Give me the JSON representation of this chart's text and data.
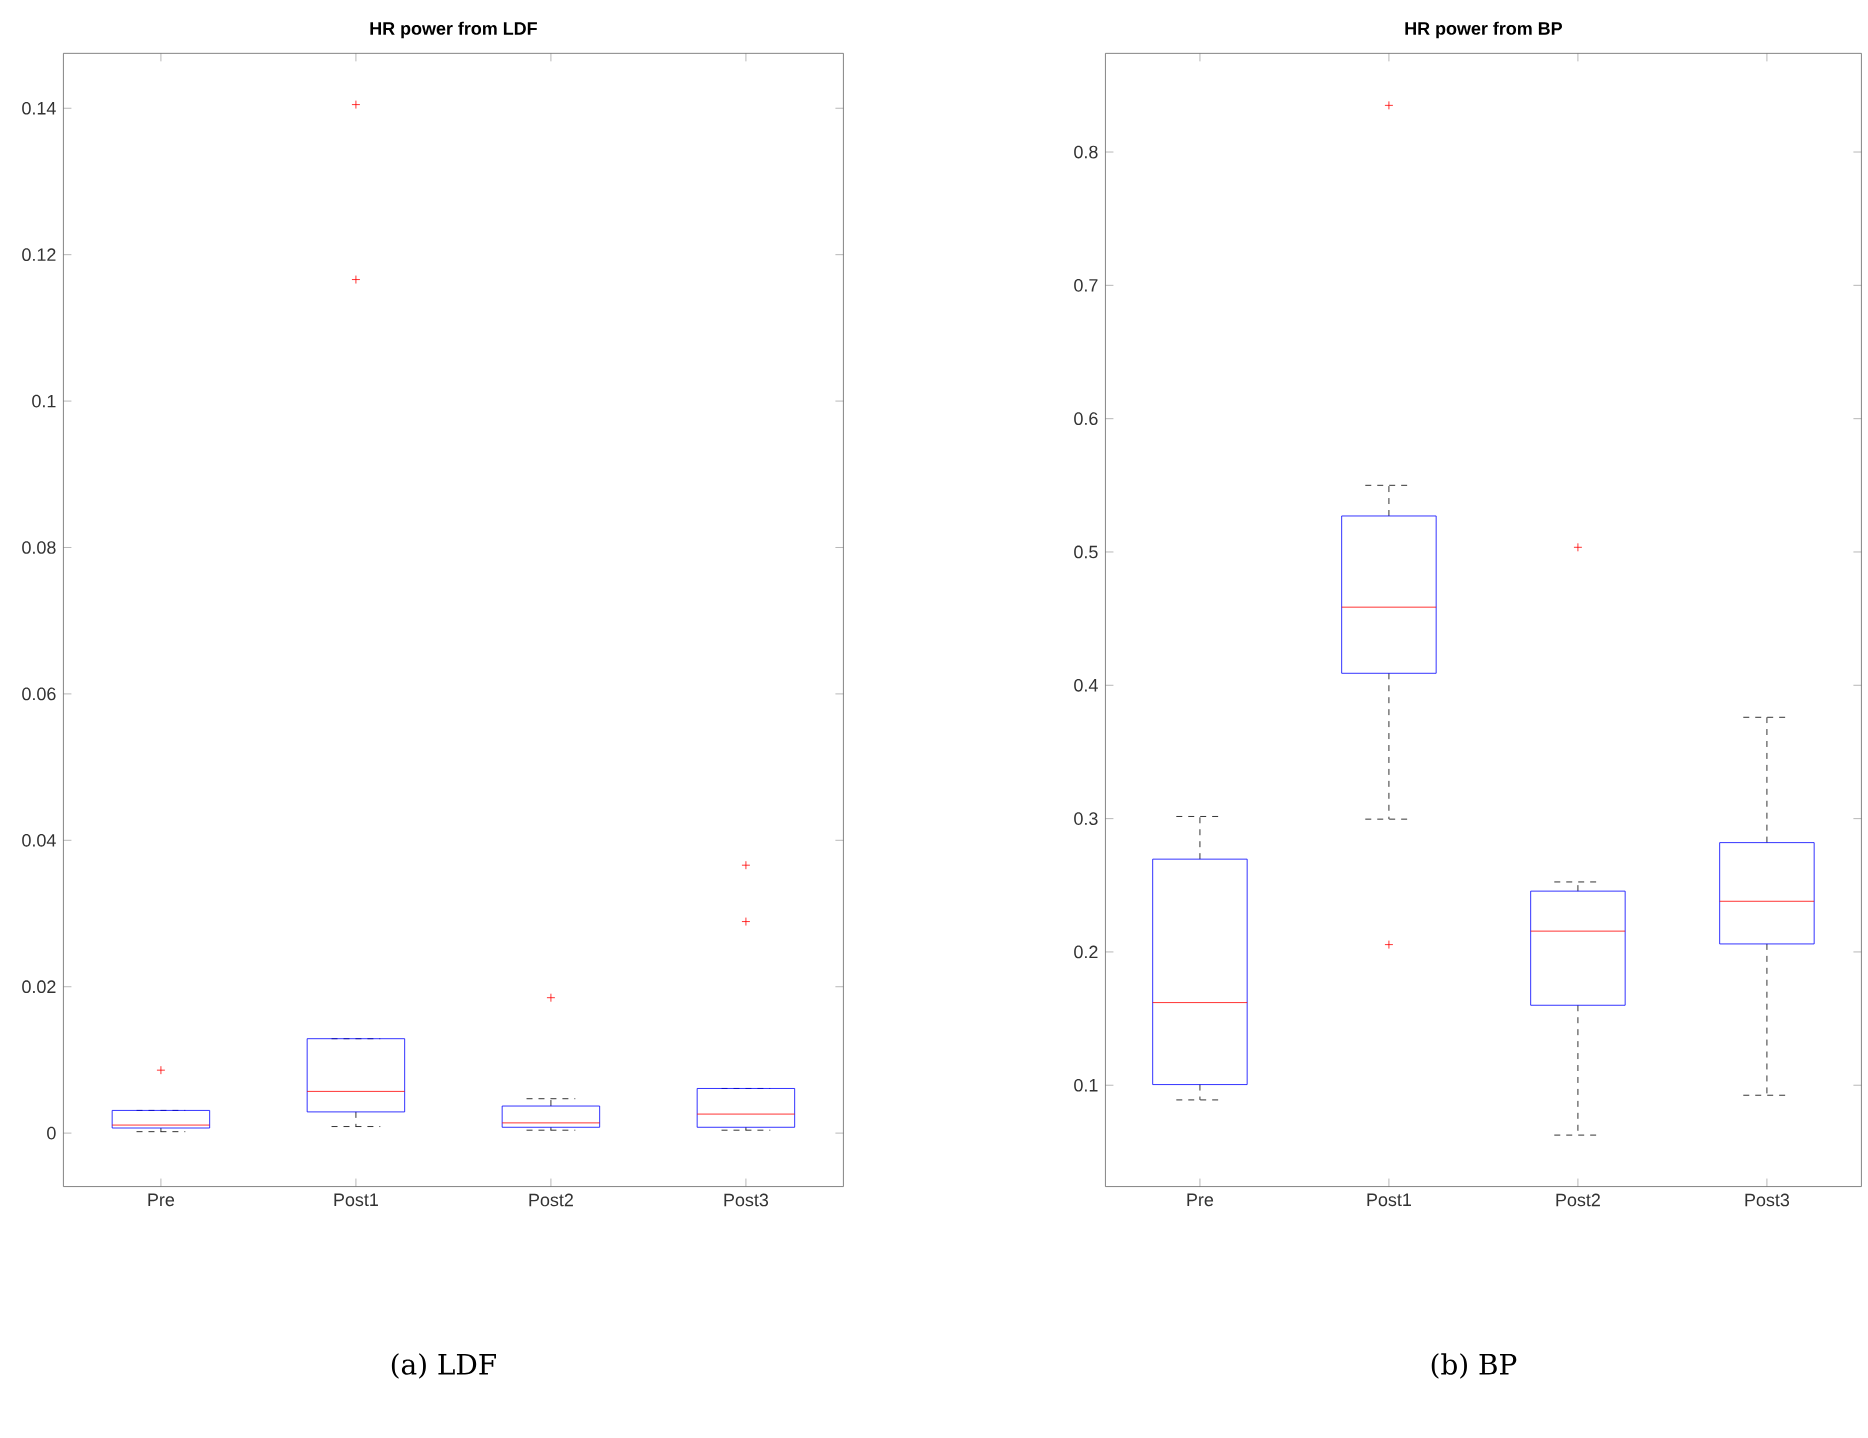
{
  "chart_data": [
    {
      "type": "box",
      "title": "HR power from LDF",
      "categories": [
        "Pre",
        "Post1",
        "Post2",
        "Post3"
      ],
      "ylim": [
        -0.0073,
        0.1475
      ],
      "yticks": [
        0,
        0.02,
        0.04,
        0.06,
        0.08,
        0.1,
        0.12,
        0.14
      ],
      "marker": "cross",
      "line_style": "dashed",
      "annotations": [
        "(a) LDF"
      ],
      "series": [
        {
          "color": "#0000ff",
          "boxes": [
            {
              "low": 0.0002,
              "q1": 0.0007,
              "median": 0.0011,
              "q3": 0.0031,
              "high": 0.0031,
              "outliers": [
                0.0086
              ]
            },
            {
              "low": 0.0009,
              "q1": 0.0029,
              "median": 0.0057,
              "q3": 0.0129,
              "high": 0.0129,
              "outliers": [
                0.1405,
                0.1166
              ]
            },
            {
              "low": 0.0004,
              "q1": 0.0008,
              "median": 0.0014,
              "q3": 0.0037,
              "high": 0.0047,
              "outliers": [
                0.0185
              ]
            },
            {
              "low": 0.0004,
              "q1": 0.0008,
              "median": 0.0026,
              "q3": 0.0061,
              "high": 0.0061,
              "outliers": [
                0.0366,
                0.0289
              ]
            }
          ]
        }
      ]
    },
    {
      "type": "box",
      "title": "HR power from BP",
      "categories": [
        "Pre",
        "Post1",
        "Post2",
        "Post3"
      ],
      "ylim": [
        0.024,
        0.874
      ],
      "yticks": [
        0.1,
        0.2,
        0.3,
        0.4,
        0.5,
        0.6,
        0.7,
        0.8
      ],
      "marker": "cross",
      "line_style": "dashed",
      "annotations": [
        "(b) BP"
      ],
      "series": [
        {
          "color": "#0000ff",
          "boxes": [
            {
              "low": 0.089,
              "q1": 0.1005,
              "median": 0.162,
              "q3": 0.2696,
              "high": 0.3016
            },
            {
              "low": 0.2996,
              "q1": 0.409,
              "median": 0.4586,
              "q3": 0.527,
              "high": 0.55,
              "outliers": [
                0.835,
                0.2055
              ]
            },
            {
              "low": 0.0626,
              "q1": 0.16,
              "median": 0.2156,
              "q3": 0.2456,
              "high": 0.2525,
              "outliers": [
                0.5035
              ]
            },
            {
              "low": 0.0925,
              "q1": 0.206,
              "median": 0.238,
              "q3": 0.282,
              "high": 0.376
            }
          ]
        }
      ]
    }
  ]
}
